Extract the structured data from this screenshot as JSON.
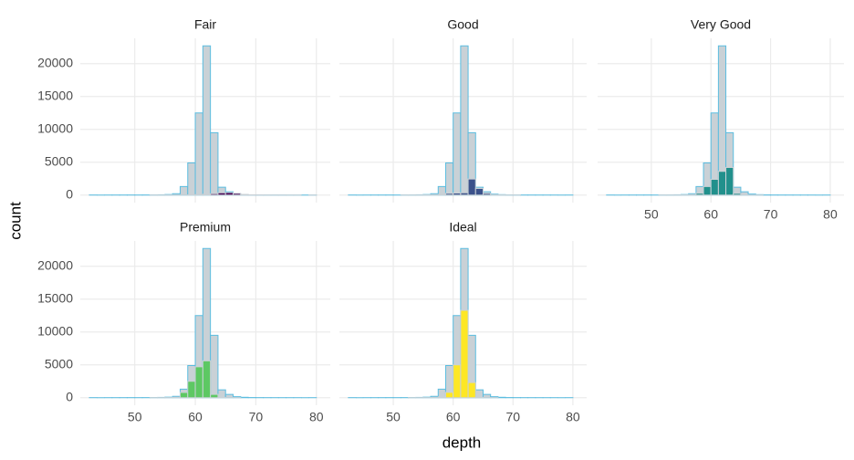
{
  "chart_data": {
    "type": "histogram",
    "x_label": "depth",
    "y_label": "count",
    "bins": [
      42.5,
      43.75,
      45,
      46.25,
      47.5,
      48.75,
      50,
      51.25,
      52.5,
      53.75,
      55,
      56.25,
      57.5,
      58.75,
      60,
      61.25,
      62.5,
      63.75,
      65,
      66.25,
      67.5,
      68.75,
      70,
      71.25,
      72.5,
      73.75,
      75,
      76.25,
      77.5,
      78.75,
      80
    ],
    "xlim": [
      41,
      82.3
    ],
    "xticks": [
      50,
      60,
      70,
      80
    ],
    "ylim": [
      -1150,
      23850
    ],
    "yticks": [
      0,
      5000,
      10000,
      15000,
      20000
    ],
    "grid": true,
    "background": {
      "color": "#c9d1d6",
      "edge_color": "#5bbde0",
      "values": [
        5,
        0,
        2,
        3,
        5,
        8,
        5,
        10,
        20,
        40,
        80,
        200,
        1300,
        4900,
        12500,
        22700,
        9500,
        1200,
        500,
        150,
        60,
        20,
        10,
        5,
        3,
        2,
        1,
        1,
        0,
        2
      ]
    },
    "facets": [
      {
        "name": "Fair",
        "color": "#440154",
        "values": [
          0,
          0,
          0,
          0,
          0,
          0,
          0,
          0,
          2,
          5,
          8,
          5,
          10,
          30,
          60,
          120,
          200,
          350,
          380,
          250,
          100,
          40,
          20,
          8,
          3,
          2,
          1,
          1,
          0,
          2
        ]
      },
      {
        "name": "Good",
        "color": "#3b528b",
        "values": [
          0,
          0,
          0,
          0,
          0,
          0,
          0,
          2,
          5,
          10,
          20,
          40,
          80,
          250,
          300,
          350,
          2450,
          1000,
          250,
          60,
          20,
          5,
          2,
          0,
          0,
          0,
          0,
          0,
          0,
          0
        ]
      },
      {
        "name": "Very Good",
        "color": "#21908c",
        "values": [
          0,
          0,
          0,
          0,
          0,
          0,
          0,
          2,
          5,
          10,
          20,
          60,
          280,
          1300,
          2400,
          3600,
          4200,
          250,
          30,
          10,
          2,
          0,
          0,
          0,
          0,
          0,
          0,
          0,
          0,
          0
        ]
      },
      {
        "name": "Premium",
        "color": "#5dc863",
        "values": [
          0,
          0,
          0,
          0,
          0,
          0,
          0,
          0,
          2,
          5,
          10,
          50,
          800,
          2500,
          4700,
          5600,
          500,
          30,
          5,
          2,
          0,
          0,
          0,
          0,
          0,
          0,
          0,
          0,
          0,
          0
        ]
      },
      {
        "name": "Ideal",
        "color": "#fde725",
        "values": [
          0,
          0,
          0,
          0,
          0,
          0,
          0,
          0,
          1,
          2,
          5,
          20,
          120,
          820,
          5000,
          13300,
          2300,
          40,
          5,
          1,
          0,
          0,
          0,
          0,
          0,
          0,
          0,
          0,
          0,
          0
        ]
      }
    ]
  }
}
